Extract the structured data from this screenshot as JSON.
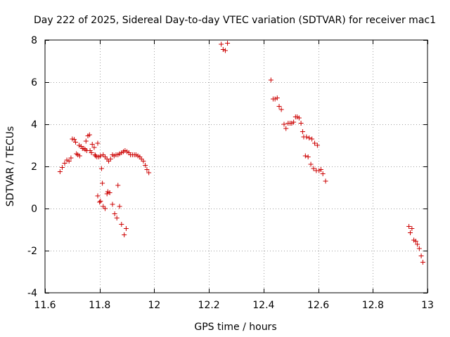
{
  "chart_data": {
    "type": "scatter",
    "title": "Day 222 of 2025, Sidereal Day-to-day VTEC variation (SDTVAR) for receiver mac1",
    "xlabel": "GPS time / hours",
    "ylabel": "SDTVAR / TECUs",
    "xlim": [
      11.6,
      13.0
    ],
    "ylim": [
      -4,
      8
    ],
    "xticks": [
      11.6,
      11.8,
      12.0,
      12.2,
      12.4,
      12.6,
      12.8,
      13.0
    ],
    "xtick_labels": [
      "11.6",
      "11.8",
      "12",
      "12.2",
      "12.4",
      "12.6",
      "12.8",
      "13"
    ],
    "yticks": [
      -4,
      -2,
      0,
      2,
      4,
      6,
      8
    ],
    "ytick_labels": [
      "-4",
      "-2",
      "0",
      "2",
      "4",
      "6",
      "8"
    ],
    "grid": true,
    "marker": "+",
    "color": "#cc0000",
    "series": [
      {
        "name": "mac1",
        "points": [
          [
            11.655,
            1.75
          ],
          [
            11.663,
            1.95
          ],
          [
            11.672,
            2.15
          ],
          [
            11.68,
            2.3
          ],
          [
            11.688,
            2.25
          ],
          [
            11.695,
            2.4
          ],
          [
            11.7,
            3.3
          ],
          [
            11.707,
            3.28
          ],
          [
            11.712,
            3.15
          ],
          [
            11.715,
            2.6
          ],
          [
            11.72,
            2.55
          ],
          [
            11.725,
            3.0
          ],
          [
            11.727,
            2.5
          ],
          [
            11.732,
            2.95
          ],
          [
            11.737,
            2.85
          ],
          [
            11.742,
            2.85
          ],
          [
            11.747,
            2.8
          ],
          [
            11.75,
            3.2
          ],
          [
            11.753,
            2.75
          ],
          [
            11.757,
            3.45
          ],
          [
            11.763,
            3.5
          ],
          [
            11.765,
            2.75
          ],
          [
            11.77,
            2.65
          ],
          [
            11.773,
            3.05
          ],
          [
            11.78,
            2.9
          ],
          [
            11.783,
            2.55
          ],
          [
            11.785,
            2.5
          ],
          [
            11.79,
            2.45
          ],
          [
            11.793,
            3.1
          ],
          [
            11.797,
            2.45
          ],
          [
            11.803,
            2.5
          ],
          [
            11.807,
            1.9
          ],
          [
            11.813,
            2.55
          ],
          [
            11.82,
            2.45
          ],
          [
            11.827,
            2.35
          ],
          [
            11.833,
            2.25
          ],
          [
            11.84,
            2.35
          ],
          [
            11.847,
            2.55
          ],
          [
            11.853,
            2.5
          ],
          [
            11.86,
            2.55
          ],
          [
            11.867,
            2.55
          ],
          [
            11.873,
            2.6
          ],
          [
            11.88,
            2.65
          ],
          [
            11.887,
            2.7
          ],
          [
            11.893,
            2.75
          ],
          [
            11.9,
            2.7
          ],
          [
            11.907,
            2.65
          ],
          [
            11.913,
            2.55
          ],
          [
            11.92,
            2.55
          ],
          [
            11.927,
            2.55
          ],
          [
            11.933,
            2.55
          ],
          [
            11.94,
            2.5
          ],
          [
            11.947,
            2.45
          ],
          [
            11.953,
            2.35
          ],
          [
            11.96,
            2.25
          ],
          [
            11.967,
            2.05
          ],
          [
            11.973,
            1.85
          ],
          [
            11.98,
            1.7
          ],
          [
            11.793,
            0.6
          ],
          [
            11.8,
            0.3
          ],
          [
            11.803,
            0.35
          ],
          [
            11.81,
            1.2
          ],
          [
            11.813,
            0.1
          ],
          [
            11.82,
            0.0
          ],
          [
            11.827,
            0.7
          ],
          [
            11.83,
            0.8
          ],
          [
            11.837,
            0.75
          ],
          [
            11.847,
            0.2
          ],
          [
            11.855,
            -0.25
          ],
          [
            11.863,
            -0.45
          ],
          [
            11.867,
            1.1
          ],
          [
            11.873,
            0.1
          ],
          [
            11.88,
            -0.75
          ],
          [
            11.89,
            -1.25
          ],
          [
            11.897,
            -0.95
          ],
          [
            12.245,
            7.8
          ],
          [
            12.252,
            7.55
          ],
          [
            12.26,
            7.5
          ],
          [
            12.268,
            7.85
          ],
          [
            12.427,
            6.1
          ],
          [
            12.435,
            5.2
          ],
          [
            12.442,
            5.2
          ],
          [
            12.45,
            5.25
          ],
          [
            12.457,
            4.85
          ],
          [
            12.465,
            4.7
          ],
          [
            12.475,
            4.0
          ],
          [
            12.482,
            3.8
          ],
          [
            12.49,
            4.05
          ],
          [
            12.497,
            4.05
          ],
          [
            12.503,
            4.05
          ],
          [
            12.51,
            4.1
          ],
          [
            12.517,
            4.35
          ],
          [
            12.523,
            4.35
          ],
          [
            12.53,
            4.3
          ],
          [
            12.537,
            4.05
          ],
          [
            12.543,
            3.65
          ],
          [
            12.547,
            3.4
          ],
          [
            12.553,
            2.5
          ],
          [
            12.557,
            3.4
          ],
          [
            12.563,
            2.45
          ],
          [
            12.567,
            3.35
          ],
          [
            12.573,
            2.1
          ],
          [
            12.577,
            3.3
          ],
          [
            12.583,
            1.9
          ],
          [
            12.587,
            3.1
          ],
          [
            12.593,
            1.8
          ],
          [
            12.597,
            3.0
          ],
          [
            12.603,
            1.8
          ],
          [
            12.61,
            1.85
          ],
          [
            12.617,
            1.65
          ],
          [
            12.627,
            1.3
          ],
          [
            12.932,
            -0.85
          ],
          [
            12.937,
            -1.15
          ],
          [
            12.943,
            -0.95
          ],
          [
            12.95,
            -1.5
          ],
          [
            12.957,
            -1.55
          ],
          [
            12.963,
            -1.7
          ],
          [
            12.97,
            -1.9
          ],
          [
            12.977,
            -2.25
          ],
          [
            12.983,
            -2.55
          ]
        ]
      }
    ]
  }
}
